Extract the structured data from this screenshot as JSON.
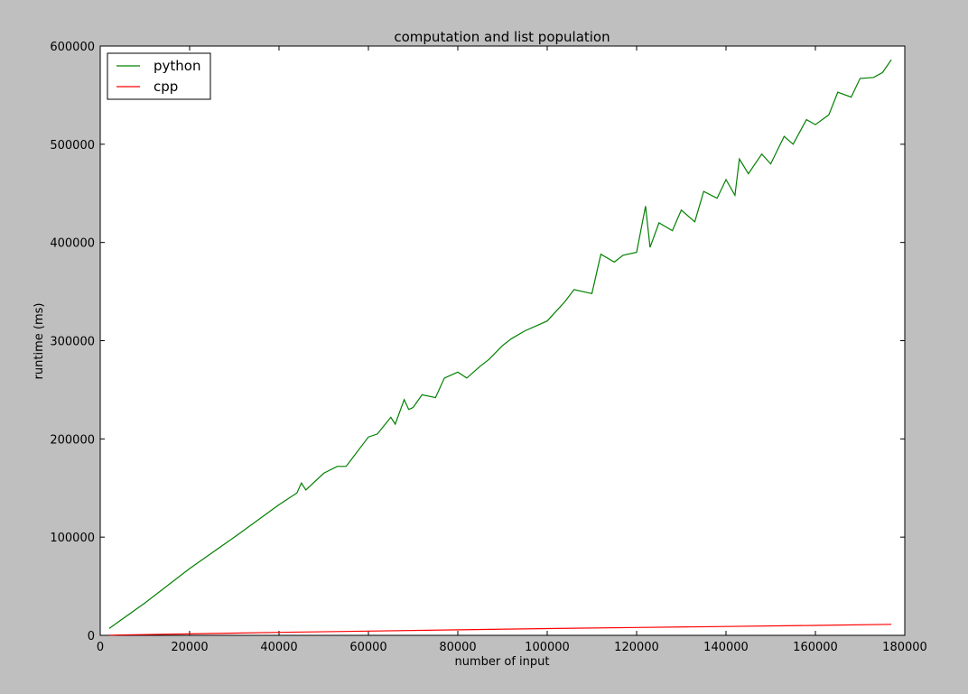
{
  "chart_data": {
    "type": "line",
    "title": "computation and list population",
    "xlabel": "number of input",
    "ylabel": "runtime (ms)",
    "xlim": [
      0,
      180000
    ],
    "ylim": [
      0,
      600000
    ],
    "xticks": [
      0,
      20000,
      40000,
      60000,
      80000,
      100000,
      120000,
      140000,
      160000,
      180000
    ],
    "yticks": [
      0,
      100000,
      200000,
      300000,
      400000,
      500000,
      600000
    ],
    "xtick_labels": [
      "0",
      "20000",
      "40000",
      "60000",
      "80000",
      "100000",
      "120000",
      "140000",
      "160000",
      "180000"
    ],
    "ytick_labels": [
      "0",
      "100000",
      "200000",
      "300000",
      "400000",
      "500000",
      "600000"
    ],
    "grid": false,
    "legend_position": "top-left",
    "series": [
      {
        "name": "python",
        "color": "#008000",
        "x": [
          2000,
          10000,
          20000,
          30000,
          40000,
          44000,
          45000,
          46000,
          50000,
          53000,
          55000,
          60000,
          62000,
          65000,
          66000,
          68000,
          69000,
          70000,
          72000,
          75000,
          77000,
          80000,
          82000,
          85000,
          87000,
          90000,
          92000,
          95000,
          100000,
          104000,
          106000,
          110000,
          112000,
          115000,
          117000,
          120000,
          122000,
          123000,
          125000,
          128000,
          130000,
          133000,
          135000,
          138000,
          140000,
          142000,
          143000,
          145000,
          148000,
          150000,
          153000,
          155000,
          158000,
          160000,
          163000,
          165000,
          168000,
          170000,
          173000,
          175000,
          177000
        ],
        "values": [
          7000,
          33000,
          68000,
          100000,
          133000,
          145000,
          155000,
          148000,
          165000,
          172000,
          172000,
          202000,
          205000,
          222000,
          215000,
          240000,
          230000,
          232000,
          245000,
          242000,
          262000,
          268000,
          262000,
          274000,
          281000,
          295000,
          302000,
          310000,
          320000,
          340000,
          352000,
          348000,
          388000,
          380000,
          387000,
          390000,
          437000,
          395000,
          420000,
          412000,
          433000,
          421000,
          452000,
          445000,
          464000,
          448000,
          485000,
          470000,
          490000,
          480000,
          508000,
          500000,
          525000,
          520000,
          530000,
          553000,
          548000,
          567000,
          568000,
          573000,
          586000
        ]
      },
      {
        "name": "cpp",
        "color": "#ff0000",
        "x": [
          2000,
          20000,
          40000,
          60000,
          80000,
          100000,
          120000,
          140000,
          160000,
          177000
        ],
        "values": [
          200,
          1500,
          3000,
          4300,
          5600,
          6900,
          8000,
          9000,
          10100,
          11200
        ]
      }
    ]
  }
}
